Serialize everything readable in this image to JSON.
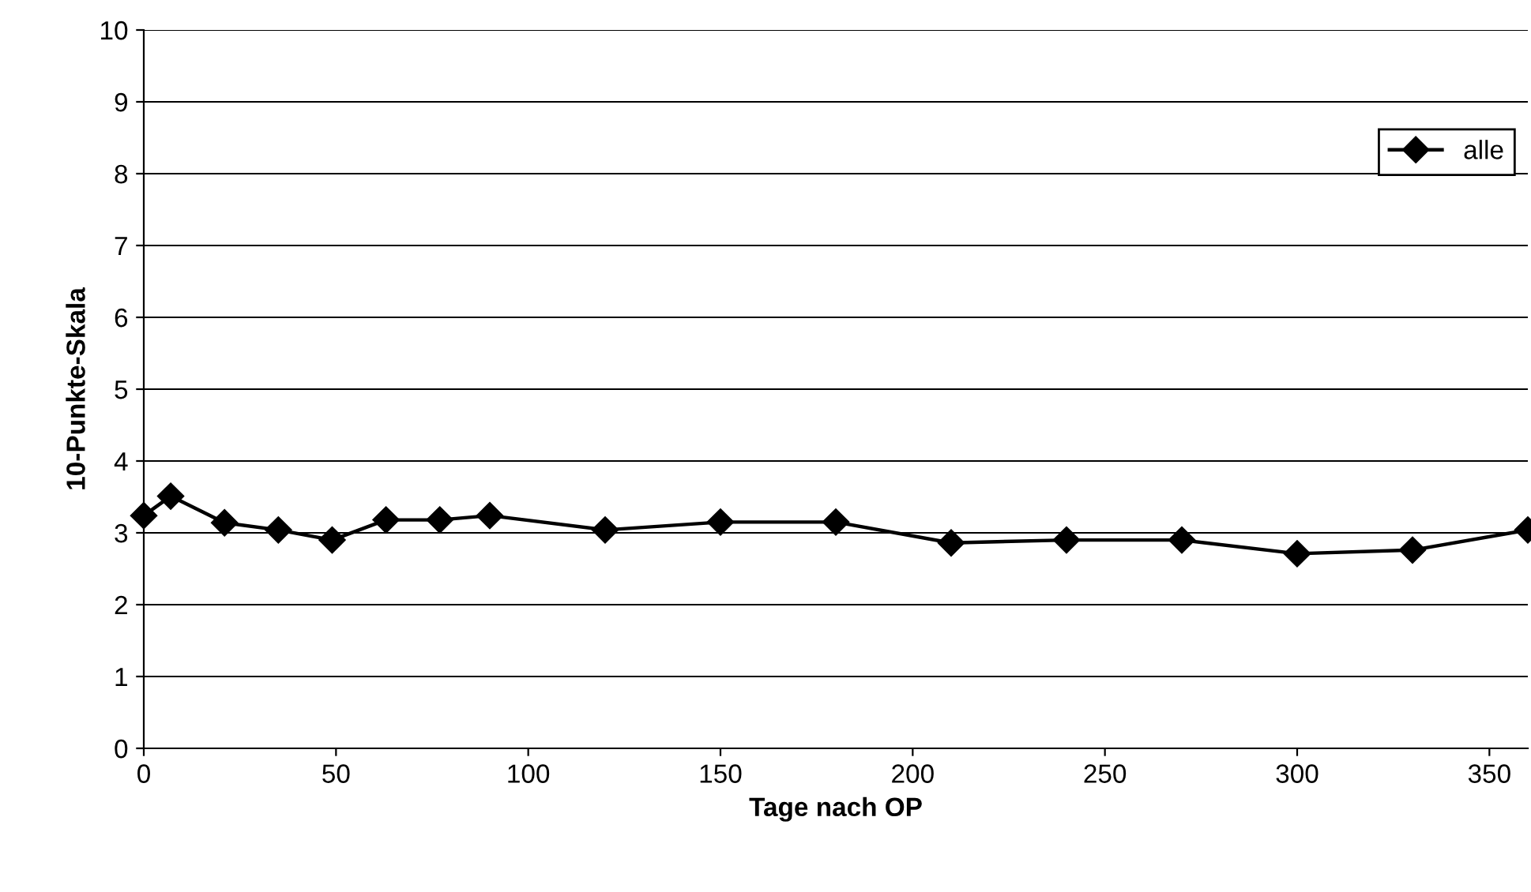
{
  "chart_data": {
    "type": "line",
    "xlabel": "Tage nach OP",
    "ylabel": "10-Punkte-Skala",
    "x": [
      0,
      7,
      21,
      35,
      49,
      63,
      77,
      90,
      120,
      150,
      180,
      210,
      240,
      270,
      300,
      330,
      360
    ],
    "series": [
      {
        "name": "alle",
        "color": "#000000",
        "values": [
          3.24,
          3.51,
          3.14,
          3.04,
          2.9,
          3.18,
          3.18,
          3.24,
          3.04,
          3.15,
          3.15,
          2.86,
          2.9,
          2.9,
          2.71,
          2.76,
          3.04
        ]
      }
    ],
    "xlim": [
      0,
      360
    ],
    "xticks": [
      0,
      50,
      100,
      150,
      200,
      250,
      300,
      350
    ],
    "ylim": [
      0,
      10
    ],
    "yticks": [
      0,
      1,
      2,
      3,
      4,
      5,
      6,
      7,
      8,
      9,
      10
    ],
    "grid": "y",
    "legend": "top right",
    "marker": "diamond",
    "line_style": "solid"
  }
}
